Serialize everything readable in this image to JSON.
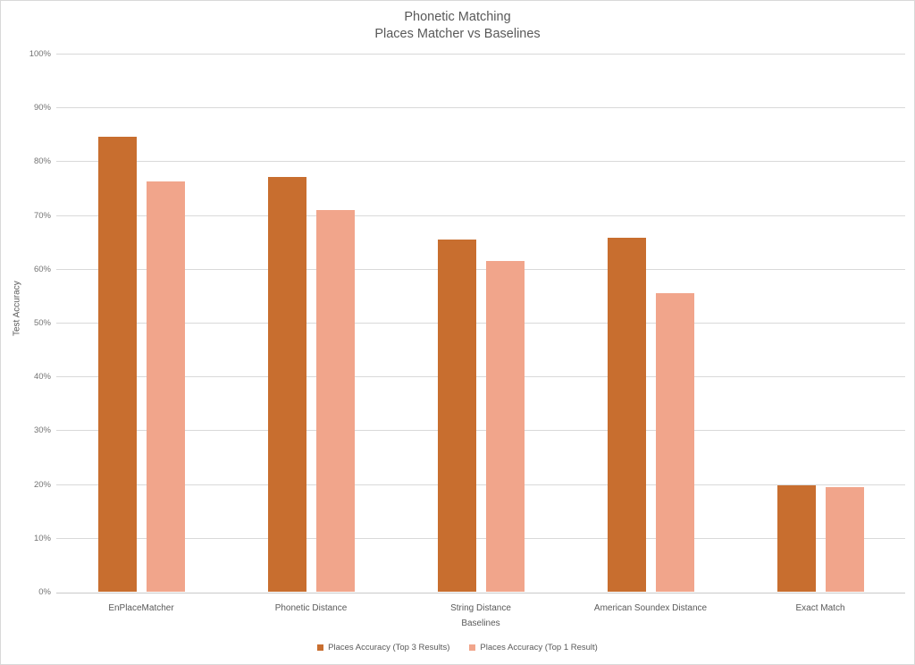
{
  "chart": {
    "title_line1": "Phonetic Matching",
    "title_line2": "Places Matcher vs Baselines",
    "y_axis_title": "Test Accuracy",
    "x_axis_title": "Baselines"
  },
  "chart_data": {
    "type": "bar",
    "title": "Phonetic Matching",
    "subtitle": "Places Matcher vs Baselines",
    "xlabel": "Baselines",
    "ylabel": "Test Accuracy",
    "categories": [
      "EnPlaceMatcher",
      "Phonetic Distance",
      "String Distance",
      "American Soundex Distance",
      "Exact Match"
    ],
    "series": [
      {
        "name": "Places Accuracy (Top 3 Results)",
        "color": "#C86E2F",
        "values": [
          84.5,
          77.0,
          65.5,
          65.8,
          19.7
        ]
      },
      {
        "name": "Places Accuracy (Top 1 Result)",
        "color": "#F1A58B",
        "values": [
          76.3,
          71.0,
          61.5,
          55.5,
          19.4
        ]
      }
    ],
    "ylim": [
      0,
      100
    ],
    "ytick_step": 10,
    "ytick_labels": [
      "0%",
      "10%",
      "20%",
      "30%",
      "40%",
      "50%",
      "60%",
      "70%",
      "80%",
      "90%",
      "100%"
    ],
    "grid": true,
    "legend_position": "bottom"
  }
}
